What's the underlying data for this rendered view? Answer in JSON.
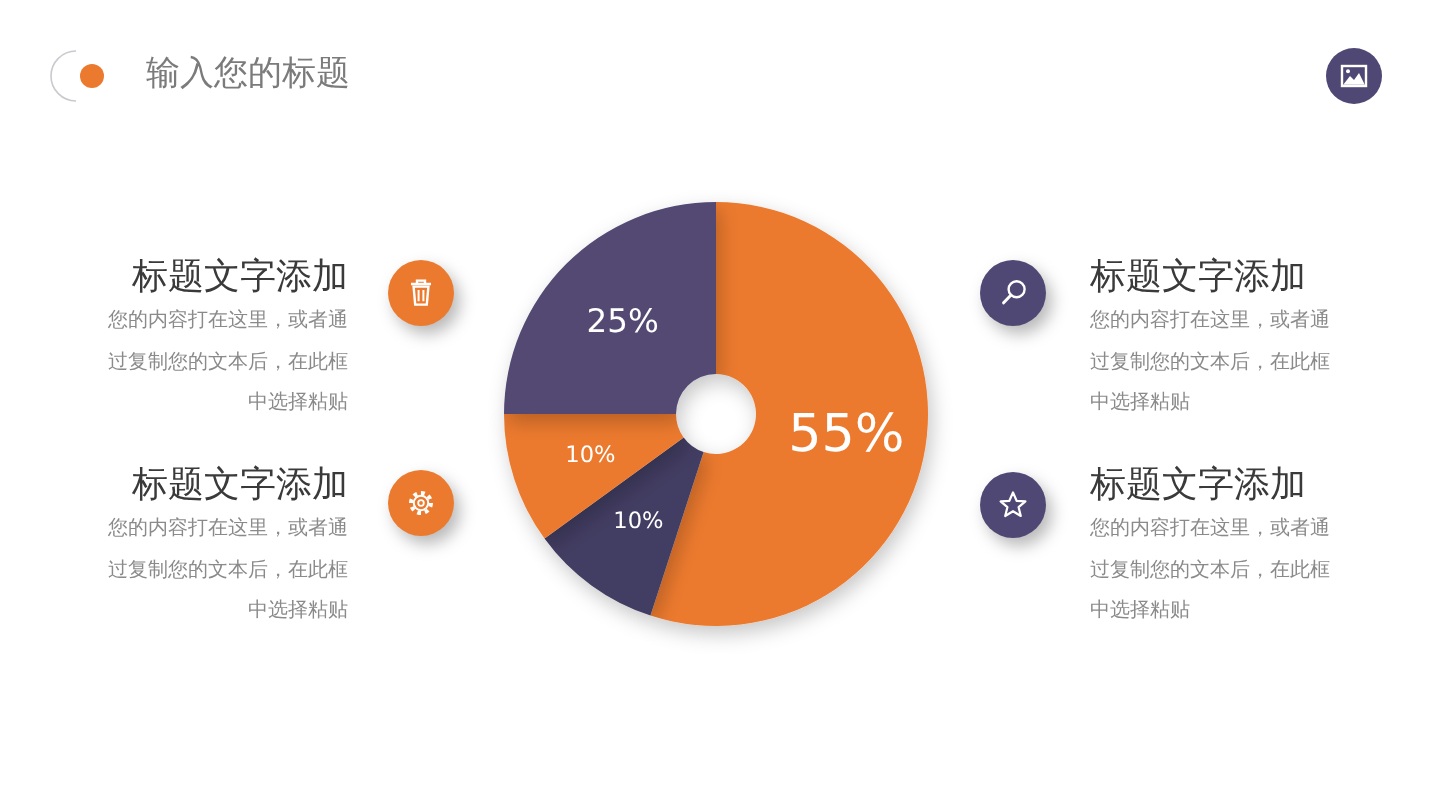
{
  "chart_data": {
    "type": "donut",
    "title": "输入您的标题",
    "categories": [
      null,
      null,
      null,
      null
    ],
    "values": [
      55,
      10,
      10,
      25
    ],
    "colors": [
      "#ec7a2e",
      "#433e62",
      "#ec7a2e",
      "#524a72"
    ],
    "value_labels": [
      "55%",
      "10%",
      "10%",
      "25%"
    ],
    "annotations": [
      "标题文字添加",
      "您的内容打在这里，或者通过复制您的文本后，在此框中选择粘贴",
      "标题文字添加",
      "您的内容打在这里，或者通过复制您的文本后，在此框中选择粘贴",
      "标题文字添加",
      "您的内容打在这里，或者通过复制您的文本后，在此框中选择粘贴",
      "标题文字添加",
      "您的内容打在这里，或者通过复制您的文本后，在此框中选择粘贴"
    ]
  }
}
